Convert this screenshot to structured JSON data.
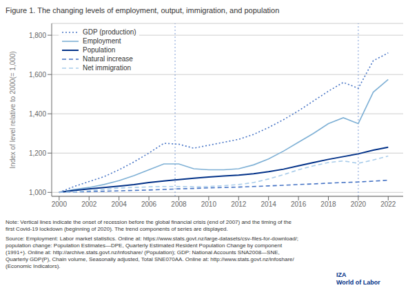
{
  "chart_data": {
    "type": "line",
    "title": "Figure 1. The changing levels of employment, output, immigration, and population",
    "y_label": "Index of level relative to 2000(= 1,000)",
    "x": [
      2000,
      2001,
      2002,
      2003,
      2004,
      2005,
      2006,
      2007,
      2008,
      2009,
      2010,
      2011,
      2012,
      2013,
      2014,
      2015,
      2016,
      2017,
      2018,
      2019,
      2020,
      2021,
      2022
    ],
    "series": [
      {
        "name": "GDP (production)",
        "color": "#4472C4",
        "line_style": "dotted",
        "values": [
          1000,
          1030,
          1055,
          1080,
          1115,
          1155,
          1200,
          1250,
          1245,
          1225,
          1240,
          1255,
          1270,
          1295,
          1330,
          1370,
          1415,
          1465,
          1515,
          1560,
          1530,
          1670,
          1710
        ]
      },
      {
        "name": "Employment",
        "color": "#7EB0D5",
        "line_style": "solid",
        "values": [
          1000,
          1015,
          1025,
          1040,
          1060,
          1085,
          1115,
          1145,
          1145,
          1120,
          1115,
          1115,
          1120,
          1140,
          1170,
          1210,
          1255,
          1300,
          1350,
          1380,
          1350,
          1510,
          1575
        ]
      },
      {
        "name": "Population",
        "color": "#003087",
        "line_style": "solid",
        "values": [
          1000,
          1010,
          1018,
          1025,
          1032,
          1040,
          1050,
          1058,
          1065,
          1072,
          1078,
          1083,
          1088,
          1095,
          1105,
          1118,
          1135,
          1152,
          1168,
          1182,
          1196,
          1215,
          1230
        ]
      },
      {
        "name": "Natural increase",
        "color": "#4472C4",
        "line_style": "dashed",
        "values": [
          1000,
          1002,
          1004,
          1006,
          1008,
          1010,
          1012,
          1015,
          1018,
          1020,
          1023,
          1025,
          1027,
          1030,
          1033,
          1036,
          1040,
          1043,
          1047,
          1050,
          1053,
          1057,
          1062
        ]
      },
      {
        "name": "Net immigration",
        "color": "#A8CCEA",
        "line_style": "dashed",
        "values": [
          1000,
          1003,
          1008,
          1015,
          1022,
          1025,
          1028,
          1030,
          1030,
          1028,
          1030,
          1034,
          1040,
          1050,
          1068,
          1090,
          1115,
          1135,
          1152,
          1160,
          1148,
          1165,
          1185
        ]
      }
    ],
    "vlines": [
      {
        "x": 2007.75,
        "color": "#4472C4"
      },
      {
        "x": 2020.0,
        "color": "#4472C4"
      }
    ],
    "xlim": [
      1999.5,
      2023
    ],
    "xticks": [
      2000,
      2002,
      2004,
      2006,
      2008,
      2010,
      2012,
      2014,
      2016,
      2018,
      2020,
      2022
    ],
    "ylim": [
      980,
      1860
    ],
    "yticks": [
      {
        "value": 1000,
        "label": "1,000"
      },
      {
        "value": 1200,
        "label": "1,200"
      },
      {
        "value": 1400,
        "label": "1,400"
      },
      {
        "value": 1600,
        "label": "1,600"
      },
      {
        "value": 1800,
        "label": "1,800"
      }
    ],
    "grid": "y",
    "legend": "upper left",
    "note": "Note: Vertical lines indicate the onset of recession before the global financial crisis (end of 2007) and the timing of the\nfirst Covid-19 lockdown (beginning of 2020). The trend components of series are displayed.",
    "source": "Source: Employment: Labor market statistics. Online at: https://www.stats.govt.nz/large-datasets/csv-files-for-download/;\npopulation change: Population Estimates—DPE, Quarterly Estimated Resident Population Change by component\n(1991+). Online at: http://archive.stats.govt.nz/infoshare/ (Population); GDP: National Accounts SNA2008—SNE,\nQuarterly GDP(P), Chain volume, Seasonally adjusted, Total SNE070AA. Online at: http://www.stats.govt.nz/infoshare/\n(Economic Indicators).",
    "annotations": [
      "IZA\nWorld of Labor"
    ]
  }
}
